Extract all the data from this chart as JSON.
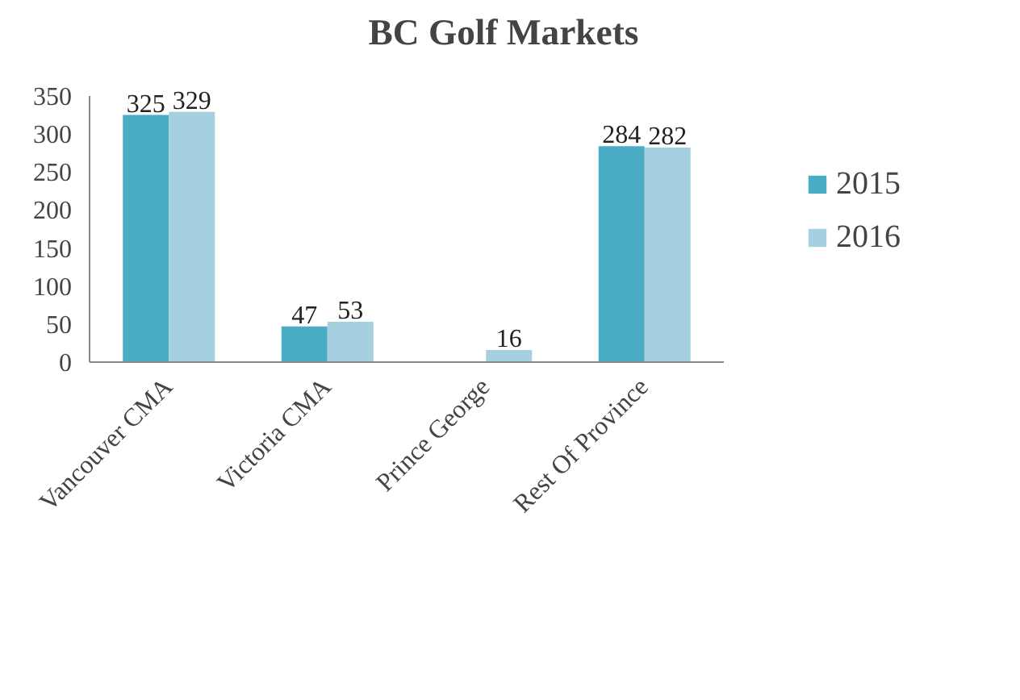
{
  "chart_data": {
    "type": "bar",
    "title": "BC Golf Markets",
    "categories": [
      "Vancouver CMA",
      "Victoria CMA",
      "Prince George",
      "Rest Of Province"
    ],
    "series": [
      {
        "name": "2015",
        "color": "#4bacc6",
        "values": [
          325,
          47,
          null,
          284
        ]
      },
      {
        "name": "2016",
        "color": "#a5d0e0",
        "values": [
          329,
          53,
          16,
          282
        ]
      }
    ],
    "ylim": [
      0,
      350
    ],
    "yticks": [
      0,
      50,
      100,
      150,
      200,
      250,
      300,
      350
    ],
    "grid": false,
    "legend": "right",
    "data_labels": true
  }
}
